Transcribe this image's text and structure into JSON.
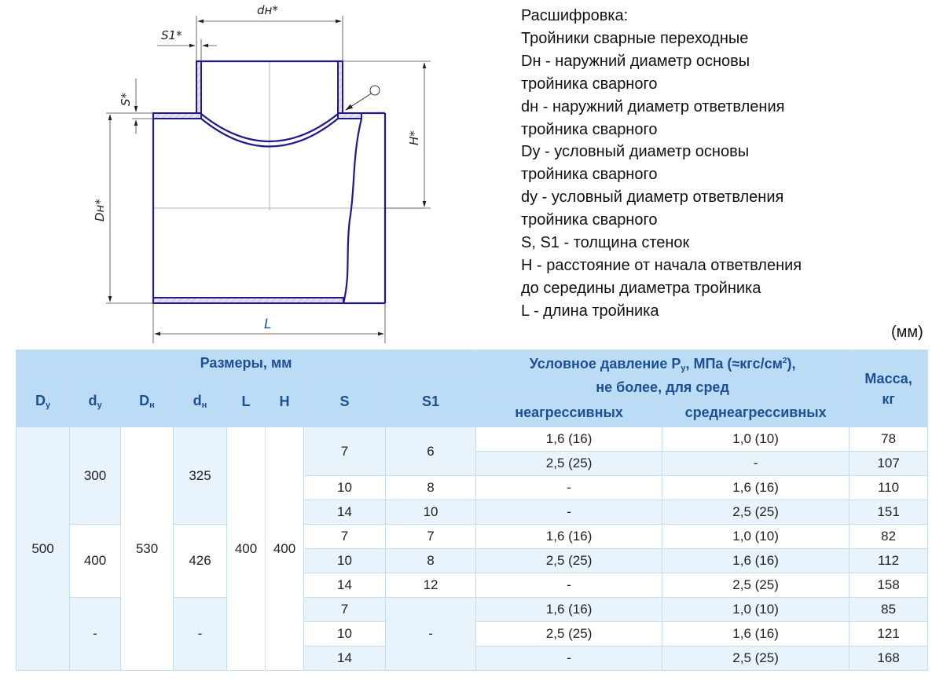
{
  "drawing": {
    "labels": {
      "dn": "dн*",
      "s1": "S1*",
      "s": "S*",
      "Dn": "Dн*",
      "H": "H*",
      "L": "L"
    },
    "colors": {
      "outline": "#1f1a8a",
      "hatch": "#b9b3e6",
      "dim": "#444444",
      "L_label": "#1c4f93"
    }
  },
  "legend": {
    "lines": [
      "Расшифровка:",
      "Тройники сварные переходные",
      "Dн - наружний диаметр основы",
      "тройника сварного",
      "dн - наружний диаметр ответвления",
      "тройника сварного",
      "Dy - условный диаметр основы",
      "тройника сварного",
      "dy - условный диаметр ответвления",
      "тройника сварного",
      "S, S1 - толщина стенок",
      "H - расстояние от начала ответвления",
      "до середины диаметра тройника",
      "L - длина тройника"
    ],
    "unit": "(мм)"
  },
  "table": {
    "colors": {
      "header_bg": "#bcdcf5",
      "header_text": "#1c4f93",
      "light_row": "#e8f3fc",
      "border": "#c3def4"
    },
    "header": {
      "sizes": "Размеры, мм",
      "Dy": "D",
      "Dy_sub": "у",
      "dy": "d",
      "dy_sub": "у",
      "Dn": "D",
      "Dn_sub": "н",
      "dn": "d",
      "dn_sub": "н",
      "L": "L",
      "H": "H",
      "S": "S",
      "S1": "S1",
      "pressure_1": "Условное давление P",
      "pressure_sub": "у",
      "pressure_2": ", МПа (≈кгс/см",
      "pressure_sup": "2",
      "pressure_3": "),",
      "pressure_line2": "не более, для сред",
      "non_aggressive": "неагрессивных",
      "medium_aggressive": "среднеагрессивных",
      "mass": "Масса,",
      "mass_unit": "кг"
    },
    "merged": {
      "Dy": "500",
      "Dn": "530",
      "L": "400",
      "H": "400",
      "dy": [
        "300",
        "400",
        "-"
      ],
      "dn": [
        "325",
        "426",
        "-"
      ],
      "S_first": "7",
      "S1_first": "6",
      "S1_last": "-"
    },
    "rows": [
      {
        "s": "7",
        "s1": "6",
        "p1": "1,6 (16)",
        "p2": "1,0 (10)",
        "mass": "78"
      },
      {
        "s": "",
        "s1": "",
        "p1": "2,5 (25)",
        "p2": "-",
        "mass": "107"
      },
      {
        "s": "10",
        "s1": "8",
        "p1": "-",
        "p2": "1,6 (16)",
        "mass": "110"
      },
      {
        "s": "14",
        "s1": "10",
        "p1": "-",
        "p2": "2,5 (25)",
        "mass": "151"
      },
      {
        "s": "7",
        "s1": "7",
        "p1": "1,6 (16)",
        "p2": "1,0 (10)",
        "mass": "82"
      },
      {
        "s": "10",
        "s1": "8",
        "p1": "2,5 (25)",
        "p2": "1,6 (16)",
        "mass": "112"
      },
      {
        "s": "14",
        "s1": "12",
        "p1": "-",
        "p2": "2,5 (25)",
        "mass": "158"
      },
      {
        "s": "7",
        "s1": "",
        "p1": "1,6 (16)",
        "p2": "1,0 (10)",
        "mass": "85"
      },
      {
        "s": "10",
        "s1": "",
        "p1": "2,5 (25)",
        "p2": "1,6 (16)",
        "mass": "121"
      },
      {
        "s": "14",
        "s1": "",
        "p1": "-",
        "p2": "2,5 (25)",
        "mass": "168"
      }
    ]
  }
}
